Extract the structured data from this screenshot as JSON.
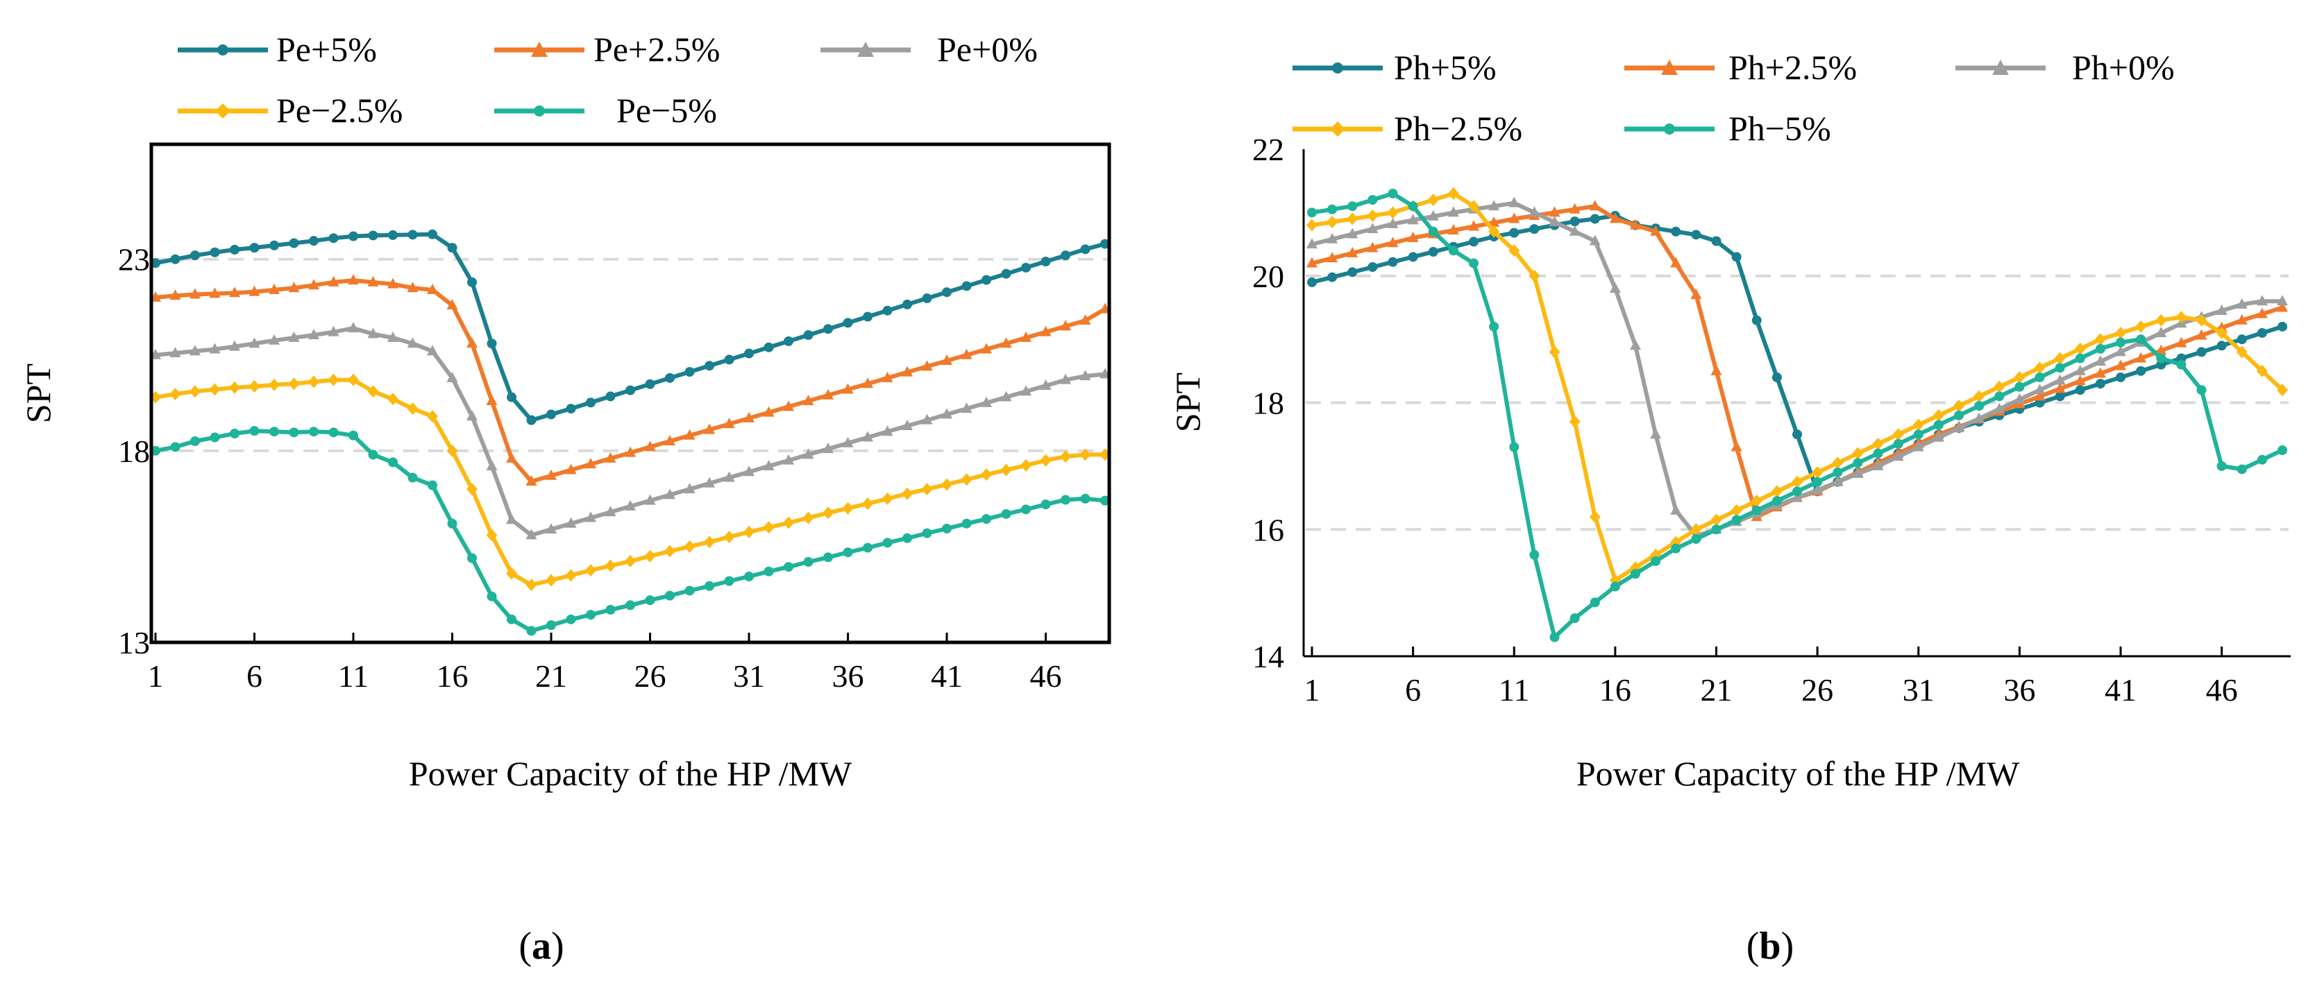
{
  "chart_data": [
    {
      "type": "line",
      "panel_label": "a",
      "xlabel": "Power Capacity of the HP /MW",
      "ylabel": "SPT",
      "xlim": [
        1,
        49
      ],
      "ylim": [
        13,
        26
      ],
      "xticks": [
        1,
        6,
        11,
        16,
        21,
        26,
        31,
        36,
        41,
        46
      ],
      "yticks": [
        13,
        18,
        23
      ],
      "grid_y": [
        18,
        23
      ],
      "legend_placement": "top",
      "series": [
        {
          "name": "Pe+5%",
          "color": "#1a7f8e",
          "marker": "circle",
          "values": [
            22.9,
            23.0,
            23.1,
            23.18,
            23.25,
            23.3,
            23.36,
            23.42,
            23.48,
            23.55,
            23.6,
            23.62,
            23.63,
            23.64,
            23.65,
            23.3,
            22.4,
            20.8,
            19.4,
            18.8,
            18.95,
            19.1,
            19.26,
            19.42,
            19.58,
            19.74,
            19.9,
            20.06,
            20.22,
            20.38,
            20.54,
            20.7,
            20.86,
            21.02,
            21.18,
            21.34,
            21.5,
            21.66,
            21.82,
            21.98,
            22.14,
            22.3,
            22.46,
            22.62,
            22.78,
            22.94,
            23.1,
            23.26,
            23.4
          ]
        },
        {
          "name": "Pe+2.5%",
          "color": "#f07a2a",
          "marker": "triangle",
          "values": [
            22.0,
            22.05,
            22.08,
            22.1,
            22.12,
            22.15,
            22.2,
            22.25,
            22.32,
            22.4,
            22.45,
            22.4,
            22.35,
            22.25,
            22.2,
            21.8,
            20.8,
            19.3,
            17.8,
            17.2,
            17.35,
            17.5,
            17.65,
            17.8,
            17.95,
            18.1,
            18.25,
            18.4,
            18.55,
            18.7,
            18.85,
            19.0,
            19.15,
            19.3,
            19.45,
            19.6,
            19.75,
            19.9,
            20.05,
            20.2,
            20.35,
            20.5,
            20.65,
            20.8,
            20.95,
            21.1,
            21.25,
            21.4,
            21.7
          ]
        },
        {
          "name": "Pe+0%",
          "color": "#9e9e9e",
          "marker": "triangle",
          "values": [
            20.5,
            20.55,
            20.6,
            20.65,
            20.72,
            20.8,
            20.88,
            20.95,
            21.02,
            21.1,
            21.2,
            21.05,
            20.95,
            20.8,
            20.6,
            19.9,
            18.9,
            17.6,
            16.2,
            15.8,
            15.95,
            16.1,
            16.25,
            16.4,
            16.55,
            16.7,
            16.85,
            17.0,
            17.15,
            17.3,
            17.45,
            17.6,
            17.75,
            17.9,
            18.05,
            18.2,
            18.35,
            18.5,
            18.65,
            18.8,
            18.95,
            19.1,
            19.25,
            19.4,
            19.55,
            19.7,
            19.85,
            19.95,
            20.0
          ]
        },
        {
          "name": "Pe−2.5%",
          "color": "#fcb911",
          "marker": "diamond",
          "values": [
            19.4,
            19.48,
            19.55,
            19.6,
            19.65,
            19.68,
            19.72,
            19.75,
            19.8,
            19.85,
            19.85,
            19.55,
            19.35,
            19.1,
            18.9,
            18.0,
            17.0,
            15.8,
            14.8,
            14.5,
            14.62,
            14.75,
            14.88,
            15.0,
            15.12,
            15.25,
            15.38,
            15.5,
            15.62,
            15.75,
            15.88,
            16.0,
            16.12,
            16.25,
            16.38,
            16.5,
            16.62,
            16.75,
            16.88,
            17.0,
            17.12,
            17.25,
            17.38,
            17.5,
            17.62,
            17.75,
            17.85,
            17.9,
            17.9
          ]
        },
        {
          "name": "Pe−5%",
          "color": "#1fb39a",
          "marker": "circle",
          "values": [
            18.0,
            18.1,
            18.25,
            18.35,
            18.45,
            18.52,
            18.5,
            18.48,
            18.5,
            18.48,
            18.4,
            17.9,
            17.7,
            17.3,
            17.1,
            16.1,
            15.2,
            14.2,
            13.6,
            13.3,
            13.45,
            13.6,
            13.72,
            13.85,
            13.97,
            14.1,
            14.22,
            14.35,
            14.47,
            14.6,
            14.72,
            14.85,
            14.97,
            15.1,
            15.22,
            15.35,
            15.47,
            15.6,
            15.72,
            15.85,
            15.97,
            16.1,
            16.22,
            16.35,
            16.47,
            16.6,
            16.72,
            16.75,
            16.7
          ]
        }
      ]
    },
    {
      "type": "line",
      "panel_label": "b",
      "xlabel": "Power Capacity of the HP /MW",
      "ylabel": "SPT",
      "xlim": [
        1,
        49
      ],
      "ylim": [
        14,
        22
      ],
      "xticks": [
        1,
        6,
        11,
        16,
        21,
        26,
        31,
        36,
        41,
        46
      ],
      "yticks": [
        14,
        16,
        18,
        20,
        22
      ],
      "grid_y": [
        16,
        18,
        20
      ],
      "legend_placement": "top",
      "series": [
        {
          "name": "Ph+5%",
          "color": "#1a7f8e",
          "marker": "circle",
          "values": [
            19.9,
            19.98,
            20.06,
            20.14,
            20.22,
            20.3,
            20.38,
            20.46,
            20.54,
            20.62,
            20.68,
            20.74,
            20.8,
            20.86,
            20.9,
            20.95,
            20.8,
            20.75,
            20.7,
            20.65,
            20.55,
            20.3,
            19.3,
            18.4,
            17.5,
            16.6,
            16.75,
            16.9,
            17.05,
            17.2,
            17.35,
            17.5,
            17.6,
            17.7,
            17.8,
            17.9,
            18.0,
            18.1,
            18.2,
            18.3,
            18.4,
            18.5,
            18.6,
            18.7,
            18.8,
            18.9,
            19.0,
            19.1,
            19.2
          ]
        },
        {
          "name": "Ph+2.5%",
          "color": "#f07a2a",
          "marker": "triangle",
          "values": [
            20.2,
            20.28,
            20.36,
            20.44,
            20.52,
            20.6,
            20.66,
            20.72,
            20.78,
            20.84,
            20.9,
            20.95,
            21.0,
            21.05,
            21.1,
            20.9,
            20.8,
            20.7,
            20.2,
            19.7,
            18.5,
            17.3,
            16.2,
            16.35,
            16.5,
            16.6,
            16.75,
            16.9,
            17.05,
            17.2,
            17.35,
            17.5,
            17.62,
            17.74,
            17.86,
            17.98,
            18.1,
            18.22,
            18.34,
            18.46,
            18.58,
            18.7,
            18.82,
            18.94,
            19.06,
            19.18,
            19.3,
            19.4,
            19.5
          ]
        },
        {
          "name": "Ph+0%",
          "color": "#9e9e9e",
          "marker": "triangle",
          "values": [
            20.5,
            20.58,
            20.66,
            20.74,
            20.82,
            20.88,
            20.94,
            21.0,
            21.05,
            21.1,
            21.15,
            21.0,
            20.85,
            20.7,
            20.55,
            19.8,
            18.9,
            17.5,
            16.3,
            15.9,
            16.0,
            16.12,
            16.25,
            16.38,
            16.5,
            16.62,
            16.75,
            16.88,
            17.0,
            17.15,
            17.3,
            17.45,
            17.6,
            17.75,
            17.9,
            18.05,
            18.2,
            18.35,
            18.5,
            18.65,
            18.8,
            18.95,
            19.1,
            19.25,
            19.35,
            19.45,
            19.55,
            19.6,
            19.6
          ]
        },
        {
          "name": "Ph−2.5%",
          "color": "#fcb911",
          "marker": "diamond",
          "values": [
            20.8,
            20.85,
            20.9,
            20.95,
            21.0,
            21.1,
            21.2,
            21.3,
            21.1,
            20.7,
            20.4,
            20.0,
            18.8,
            17.7,
            16.2,
            15.2,
            15.4,
            15.6,
            15.8,
            16.0,
            16.15,
            16.3,
            16.45,
            16.6,
            16.75,
            16.9,
            17.05,
            17.2,
            17.35,
            17.5,
            17.65,
            17.8,
            17.95,
            18.1,
            18.25,
            18.4,
            18.55,
            18.7,
            18.85,
            19.0,
            19.1,
            19.2,
            19.3,
            19.35,
            19.3,
            19.1,
            18.8,
            18.5,
            18.2
          ]
        },
        {
          "name": "Ph−5%",
          "color": "#1fb39a",
          "marker": "circle",
          "values": [
            21.0,
            21.05,
            21.1,
            21.2,
            21.3,
            21.1,
            20.7,
            20.4,
            20.2,
            19.2,
            17.3,
            15.6,
            14.3,
            14.6,
            14.85,
            15.1,
            15.3,
            15.5,
            15.7,
            15.85,
            16.0,
            16.15,
            16.3,
            16.45,
            16.6,
            16.75,
            16.9,
            17.05,
            17.2,
            17.35,
            17.5,
            17.65,
            17.8,
            17.95,
            18.1,
            18.25,
            18.4,
            18.55,
            18.7,
            18.85,
            18.95,
            19.0,
            18.7,
            18.6,
            18.2,
            17.0,
            16.95,
            17.1,
            17.25
          ]
        }
      ]
    }
  ]
}
